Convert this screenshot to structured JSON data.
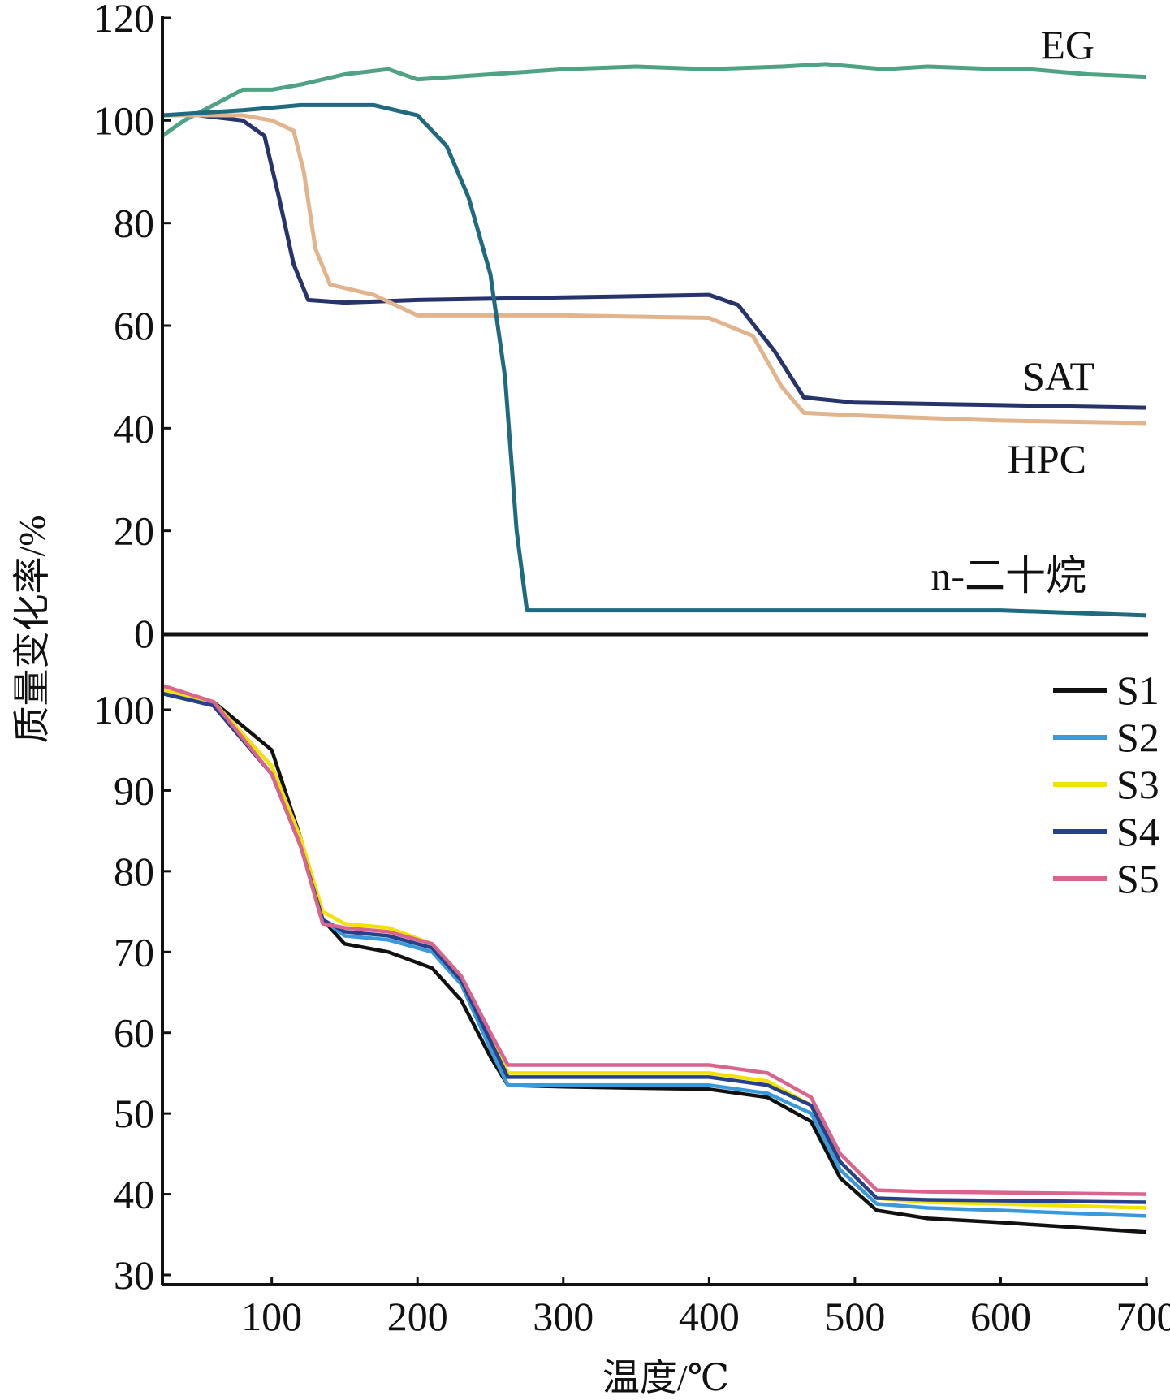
{
  "chart_data": [
    {
      "type": "line",
      "panel": "top",
      "ylabel": "质量变化率/%",
      "ylim": [
        0,
        120
      ],
      "yticks": [
        0,
        20,
        40,
        60,
        80,
        100,
        120
      ],
      "xlim": [
        25,
        700
      ],
      "series": [
        {
          "name": "EG",
          "color": "#4fa284",
          "x": [
            25,
            40,
            60,
            80,
            100,
            120,
            150,
            180,
            200,
            250,
            300,
            350,
            400,
            450,
            480,
            520,
            550,
            600,
            620,
            660,
            700
          ],
          "y": [
            97,
            100,
            103,
            106,
            106,
            107,
            109,
            110,
            108,
            109,
            110,
            110.5,
            110,
            110.5,
            111,
            110,
            110.5,
            110,
            110,
            109,
            108.5
          ]
        },
        {
          "name": "SAT",
          "color": "#27336b",
          "x": [
            25,
            50,
            80,
            95,
            105,
            115,
            125,
            150,
            200,
            300,
            400,
            420,
            445,
            465,
            500,
            600,
            700
          ],
          "y": [
            101,
            101,
            100,
            97,
            85,
            72,
            65,
            64.5,
            65,
            65.5,
            66,
            64,
            55,
            46,
            45,
            44.5,
            44
          ]
        },
        {
          "name": "HPC",
          "color": "#e2b48e",
          "x": [
            25,
            80,
            100,
            115,
            122,
            130,
            140,
            170,
            200,
            300,
            400,
            430,
            450,
            465,
            500,
            600,
            700
          ],
          "y": [
            101,
            101,
            100,
            98,
            90,
            75,
            68,
            66,
            62,
            62,
            61.5,
            58,
            48,
            43,
            42.5,
            41.5,
            41
          ]
        },
        {
          "name": "n-二十烷",
          "color": "#1f6a7e",
          "x": [
            25,
            80,
            120,
            170,
            200,
            220,
            235,
            250,
            260,
            268,
            275,
            400,
            600,
            700
          ],
          "y": [
            101,
            102,
            103,
            103,
            101,
            95,
            85,
            70,
            50,
            20,
            4.5,
            4.5,
            4.5,
            3.5
          ]
        }
      ]
    },
    {
      "type": "line",
      "panel": "bottom",
      "xlabel": "温度/℃",
      "ylim": [
        30,
        105
      ],
      "yticks": [
        30,
        40,
        50,
        60,
        70,
        80,
        90,
        100
      ],
      "xlim": [
        25,
        700
      ],
      "xticks": [
        100,
        200,
        300,
        400,
        500,
        600,
        700
      ],
      "legend": "top-right",
      "series": [
        {
          "name": "S1",
          "color": "#111111",
          "x": [
            25,
            60,
            100,
            120,
            135,
            150,
            180,
            210,
            230,
            250,
            262,
            300,
            400,
            440,
            470,
            490,
            515,
            550,
            600,
            700
          ],
          "y": [
            102,
            101,
            95,
            84,
            74,
            71,
            70,
            68,
            64,
            57,
            53.5,
            53.3,
            53,
            52,
            49,
            42,
            38,
            37,
            36.5,
            35.3
          ]
        },
        {
          "name": "S2",
          "color": "#3a9ad9",
          "x": [
            25,
            60,
            100,
            120,
            135,
            150,
            180,
            210,
            230,
            250,
            262,
            300,
            400,
            440,
            470,
            490,
            515,
            550,
            600,
            700
          ],
          "y": [
            102,
            101,
            93,
            84,
            74,
            72,
            71.5,
            70,
            66,
            58,
            53.5,
            53.5,
            53.5,
            52.5,
            50,
            43,
            38.8,
            38.3,
            38,
            37.3
          ]
        },
        {
          "name": "S3",
          "color": "#f2e200",
          "x": [
            25,
            60,
            100,
            120,
            135,
            150,
            180,
            210,
            230,
            250,
            262,
            300,
            400,
            440,
            470,
            490,
            515,
            550,
            600,
            700
          ],
          "y": [
            102.5,
            101,
            93,
            84,
            75,
            73.5,
            73,
            71,
            67,
            60,
            55,
            55,
            55,
            54,
            51,
            44,
            39.5,
            39,
            38.8,
            38.3
          ]
        },
        {
          "name": "S4",
          "color": "#26408a",
          "x": [
            25,
            60,
            100,
            120,
            135,
            150,
            180,
            210,
            230,
            250,
            262,
            300,
            400,
            440,
            470,
            490,
            515,
            550,
            600,
            700
          ],
          "y": [
            102,
            100.5,
            92,
            83,
            74,
            72.5,
            72,
            70.5,
            66.5,
            59,
            54.5,
            54.5,
            54.5,
            53.5,
            51,
            44,
            39.5,
            39.3,
            39.2,
            39
          ]
        },
        {
          "name": "S5",
          "color": "#d9648e",
          "x": [
            25,
            60,
            100,
            120,
            135,
            150,
            180,
            210,
            230,
            250,
            262,
            300,
            400,
            440,
            470,
            490,
            515,
            550,
            600,
            700
          ],
          "y": [
            103,
            101,
            92,
            83,
            73.5,
            73,
            72.5,
            71,
            67,
            60,
            56,
            56,
            56,
            55,
            52,
            45,
            40.5,
            40.3,
            40.2,
            40
          ]
        }
      ]
    }
  ]
}
